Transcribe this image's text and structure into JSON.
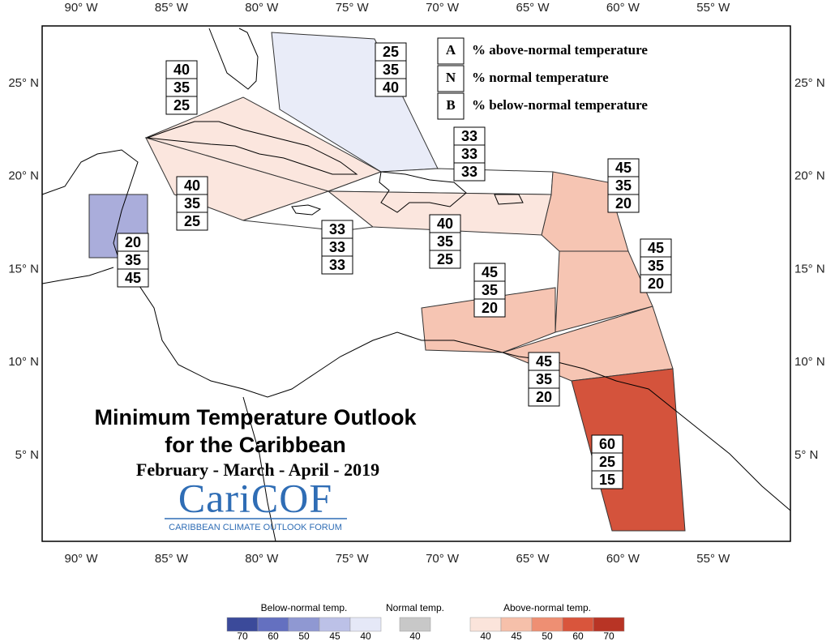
{
  "map": {
    "title_lines": [
      "Minimum Temperature Outlook",
      "for the Caribbean"
    ],
    "season": "February - March - April - 2019",
    "logo": "CariCOF",
    "logo_subtitle": "CARIBBEAN CLIMATE OUTLOOK FORUM",
    "lon_labels": [
      "90° W",
      "85° W",
      "80° W",
      "75° W",
      "70° W",
      "65° W",
      "60° W",
      "55° W"
    ],
    "lat_labels": [
      "25° N",
      "20° N",
      "15° N",
      "10° N",
      "5° N"
    ]
  },
  "key": [
    {
      "letter": "A",
      "text": "% above-normal temperature"
    },
    {
      "letter": "N",
      "text": "% normal temperature"
    },
    {
      "letter": "B",
      "text": "% below-normal temperature"
    }
  ],
  "regions": [
    {
      "color": "#e9ecf8",
      "above": 25,
      "normal": 35,
      "below": 40
    },
    {
      "color": "#fbe6de",
      "above": 40,
      "normal": 35,
      "below": 25
    },
    {
      "color": "#ffffff",
      "above": 33,
      "normal": 33,
      "below": 33
    },
    {
      "color": "#fbe6de",
      "above": 40,
      "normal": 35,
      "below": 25
    },
    {
      "color": "#f6c5b3",
      "above": 45,
      "normal": 35,
      "below": 20
    },
    {
      "color": "#f6c5b3",
      "above": 45,
      "normal": 35,
      "below": 20
    },
    {
      "color": "#aaaddb",
      "above": 20,
      "normal": 35,
      "below": 45
    },
    {
      "color": "#ffffff",
      "above": 33,
      "normal": 33,
      "below": 33
    },
    {
      "color": "#fbe6de",
      "above": 40,
      "normal": 35,
      "below": 25
    },
    {
      "color": "#f6c5b3",
      "above": 45,
      "normal": 35,
      "below": 20
    },
    {
      "color": "#f6c5b3",
      "above": 45,
      "normal": 35,
      "below": 20
    },
    {
      "color": "#d4533c",
      "above": 60,
      "normal": 25,
      "below": 15
    }
  ],
  "legend": [
    {
      "title": "Below-normal temp.",
      "items": [
        {
          "value": 70,
          "color": "#3b4a9a"
        },
        {
          "value": 60,
          "color": "#6470c0"
        },
        {
          "value": 50,
          "color": "#8f98d2"
        },
        {
          "value": 45,
          "color": "#bcc1e7"
        },
        {
          "value": 40,
          "color": "#e5e8f7"
        }
      ]
    },
    {
      "title": "Normal temp.",
      "items": [
        {
          "value": 40,
          "color": "#c8c8c8"
        }
      ]
    },
    {
      "title": "Above-normal temp.",
      "items": [
        {
          "value": 40,
          "color": "#fbe4db"
        },
        {
          "value": 45,
          "color": "#f6c0aa"
        },
        {
          "value": 50,
          "color": "#ee8f73"
        },
        {
          "value": 60,
          "color": "#d9553c"
        },
        {
          "value": 70,
          "color": "#b83425"
        }
      ]
    }
  ]
}
